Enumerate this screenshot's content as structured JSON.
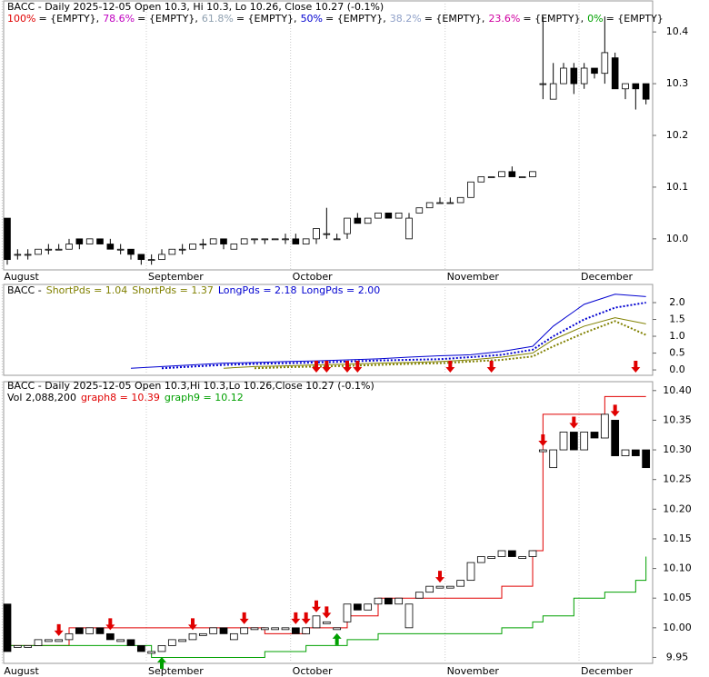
{
  "chart_data": [
    {
      "type": "candlestick",
      "title": "BACC - Daily 2025-12-05 Open 10.3, Hi 10.3, Lo 10.26, Close 10.27 (-0.1%)",
      "legend": [
        {
          "label": "100%",
          "text": "= {EMPTY},",
          "color": "#e00000"
        },
        {
          "label": "78.6%",
          "text": "= {EMPTY},",
          "color": "#c000c0"
        },
        {
          "label": "61.8%",
          "text": "= {EMPTY},",
          "color": "#8fa0b0"
        },
        {
          "label": "50%",
          "text": "= {EMPTY},",
          "color": "#0000d0"
        },
        {
          "label": "38.2%",
          "text": "= {EMPTY},",
          "color": "#8fa0c8"
        },
        {
          "label": "23.6%",
          "text": "= {EMPTY},",
          "color": "#d000a0"
        },
        {
          "label": "0%",
          "text": "= {EMPTY}",
          "color": "#00a000"
        }
      ],
      "x_labels": [
        {
          "value": 0,
          "label": "August"
        },
        {
          "value": 14,
          "label": "September"
        },
        {
          "value": 28,
          "label": "October"
        },
        {
          "value": 43,
          "label": "November"
        },
        {
          "value": 56,
          "label": "December"
        }
      ],
      "open": [
        10.04,
        9.97,
        9.97,
        9.97,
        9.98,
        9.98,
        9.98,
        10.0,
        9.99,
        10.0,
        9.99,
        9.98,
        9.98,
        9.97,
        9.96,
        9.96,
        9.97,
        9.98,
        9.98,
        9.99,
        9.99,
        10.0,
        9.98,
        9.99,
        10.0,
        10.0,
        10.0,
        10.0,
        10.0,
        9.99,
        10.0,
        10.01,
        10.0,
        10.01,
        10.04,
        10.03,
        10.04,
        10.05,
        10.04,
        10.0,
        10.05,
        10.06,
        10.07,
        10.07,
        10.07,
        10.08,
        10.11,
        10.12,
        10.12,
        10.13,
        10.12,
        10.12,
        10.3,
        10.27,
        10.3,
        10.33,
        10.3,
        10.33,
        10.32,
        10.35,
        10.29,
        10.3,
        10.3
      ],
      "high": [
        10.04,
        9.98,
        9.98,
        9.98,
        9.99,
        9.99,
        10.0,
        10.0,
        10.0,
        10.0,
        10.0,
        9.99,
        9.98,
        9.97,
        9.97,
        9.98,
        9.98,
        9.99,
        9.99,
        10.0,
        10.0,
        10.0,
        9.99,
        10.0,
        10.0,
        10.0,
        10.0,
        10.01,
        10.01,
        10.0,
        10.02,
        10.06,
        10.01,
        10.04,
        10.05,
        10.04,
        10.05,
        10.05,
        10.05,
        10.05,
        10.06,
        10.07,
        10.08,
        10.08,
        10.08,
        10.11,
        10.12,
        10.12,
        10.13,
        10.14,
        10.12,
        10.13,
        10.43,
        10.34,
        10.34,
        10.34,
        10.34,
        10.33,
        10.43,
        10.36,
        10.3,
        10.3,
        10.3
      ],
      "low": [
        9.95,
        9.96,
        9.96,
        9.97,
        9.97,
        9.98,
        9.98,
        9.98,
        9.99,
        9.99,
        9.98,
        9.97,
        9.96,
        9.95,
        9.95,
        9.96,
        9.97,
        9.97,
        9.98,
        9.98,
        9.99,
        9.98,
        9.98,
        9.99,
        9.99,
        9.99,
        10.0,
        9.99,
        9.99,
        9.99,
        9.99,
        10.0,
        10.0,
        10.0,
        10.03,
        10.03,
        10.04,
        10.04,
        10.04,
        10.0,
        10.05,
        10.06,
        10.07,
        10.07,
        10.07,
        10.08,
        10.11,
        10.12,
        10.12,
        10.12,
        10.12,
        10.12,
        10.27,
        10.27,
        10.3,
        10.28,
        10.29,
        10.31,
        10.3,
        10.29,
        10.27,
        10.25,
        10.26
      ],
      "close": [
        9.96,
        9.97,
        9.97,
        9.98,
        9.98,
        9.98,
        9.99,
        9.99,
        10.0,
        9.99,
        9.98,
        9.98,
        9.97,
        9.96,
        9.96,
        9.97,
        9.98,
        9.98,
        9.99,
        9.99,
        10.0,
        9.99,
        9.99,
        10.0,
        10.0,
        10.0,
        10.0,
        10.0,
        9.99,
        10.0,
        10.02,
        10.01,
        10.0,
        10.04,
        10.03,
        10.04,
        10.05,
        10.04,
        10.05,
        10.04,
        10.06,
        10.07,
        10.07,
        10.07,
        10.08,
        10.11,
        10.12,
        10.12,
        10.13,
        10.12,
        10.12,
        10.13,
        10.3,
        10.3,
        10.33,
        10.3,
        10.33,
        10.32,
        10.36,
        10.29,
        10.3,
        10.29,
        10.27
      ],
      "up_color": "#ffffff",
      "down_color": "#000000",
      "ylim": [
        9.94,
        10.46
      ],
      "yticks": [
        {
          "value": 10,
          "label": "10.0"
        },
        10.1,
        10.2,
        10.3,
        10.4
      ]
    },
    {
      "type": "line",
      "title": "BACC -",
      "x": [
        12,
        15,
        18,
        21,
        24,
        27,
        30,
        33,
        36,
        39,
        42,
        45,
        48,
        51,
        53,
        56,
        59,
        62
      ],
      "series": [
        {
          "name": "ShortPds = 1.04",
          "color": "#808000",
          "style": "dotted",
          "values": [
            null,
            null,
            null,
            null,
            0.05,
            0.08,
            0.1,
            0.12,
            0.15,
            0.18,
            0.2,
            0.25,
            0.3,
            0.4,
            0.7,
            1.1,
            1.45,
            1.04
          ]
        },
        {
          "name": "ShortPds = 1.37",
          "color": "#808000",
          "style": "solid",
          "values": [
            null,
            null,
            null,
            0.05,
            0.1,
            0.12,
            0.15,
            0.17,
            0.2,
            0.22,
            0.25,
            0.3,
            0.38,
            0.5,
            0.9,
            1.3,
            1.55,
            1.37
          ]
        },
        {
          "name": "LongPds = 2.18",
          "color": "#0000d0",
          "style": "solid",
          "values": [
            0.05,
            0.1,
            0.15,
            0.2,
            0.22,
            0.25,
            0.27,
            0.3,
            0.33,
            0.38,
            0.42,
            0.45,
            0.55,
            0.7,
            1.3,
            1.95,
            2.25,
            2.18
          ]
        },
        {
          "name": "LongPds = 2.00",
          "color": "#0000d0",
          "style": "dotted",
          "values": [
            null,
            0.05,
            0.1,
            0.15,
            0.18,
            0.2,
            0.22,
            0.25,
            0.28,
            0.3,
            0.32,
            0.38,
            0.45,
            0.6,
            1.0,
            1.5,
            1.85,
            2.0
          ]
        }
      ],
      "signals_down": [
        30,
        31,
        33,
        34,
        43,
        47,
        61
      ],
      "ylim": [
        -0.16,
        2.54
      ],
      "yticks": [
        {
          "value": 0,
          "label": "0.0"
        },
        0.5,
        {
          "value": 1,
          "label": "1.0"
        },
        1.5,
        {
          "value": 2,
          "label": "2.0"
        }
      ]
    },
    {
      "type": "box",
      "title": "BACC - Daily 2025-12-05 Open 10.3,Hi 10.3,Lo 10.26,Close 10.27 (-0.1%)",
      "volume_label": "Vol 2,088,200",
      "x": [
        0,
        6,
        14,
        25,
        29,
        33,
        36,
        43,
        48,
        51,
        52,
        55,
        58,
        61,
        62
      ],
      "series": [
        {
          "name": "graph8 = 10.39",
          "color": "#e00000",
          "values": [
            9.97,
            10.0,
            10.0,
            9.99,
            10.0,
            10.02,
            10.05,
            10.05,
            10.07,
            10.13,
            10.36,
            10.36,
            10.39,
            10.39,
            10.39
          ]
        },
        {
          "name": "graph9 = 10.12",
          "color": "#00a000",
          "values": [
            9.97,
            9.97,
            9.95,
            9.96,
            9.97,
            9.98,
            9.99,
            9.99,
            10.0,
            10.01,
            10.02,
            10.05,
            10.06,
            10.08,
            10.12
          ]
        }
      ],
      "signals_down": [
        5,
        10,
        18,
        23,
        28,
        29,
        30,
        31,
        42,
        52,
        55,
        59
      ],
      "signals_up": [
        15,
        32
      ],
      "ylim": [
        9.94,
        10.415
      ],
      "yticks": [
        9.95,
        {
          "value": 10,
          "label": "10.00"
        },
        10.05,
        {
          "value": 10.1,
          "label": "10.10"
        },
        10.15,
        {
          "value": 10.2,
          "label": "10.20"
        },
        10.25,
        {
          "value": 10.3,
          "label": "10.30"
        },
        10.35,
        {
          "value": 10.4,
          "label": "10.40"
        }
      ]
    }
  ]
}
